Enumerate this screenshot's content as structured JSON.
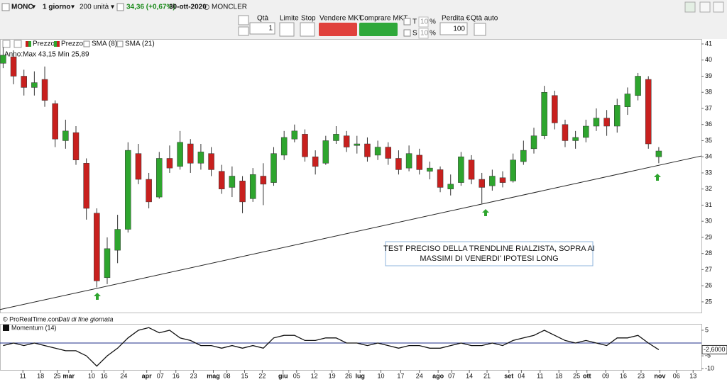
{
  "toolbar": {
    "symbol": "MONC",
    "period": "1 giorno",
    "units": "200 unità",
    "price": "34,36 (+0,67%)",
    "date": "30-ott-2020",
    "name": "MONCLER"
  },
  "order_bar": {
    "qty_label": "Qtà",
    "qty": "1",
    "limit": "Limite",
    "stop": "Stop",
    "sell": "Vendere MKT",
    "buy": "Comprare MKT",
    "t": "T",
    "s": "S",
    "t_pct": "10",
    "t_pct_sign": "%",
    "s_pct": "10",
    "s_pct_sign": "%",
    "loss_label": "Perdita €",
    "loss": "100",
    "auto_qty": "Qtà auto"
  },
  "legend": [
    "Prezzo",
    "Prezzo",
    "SMA (8)",
    "SMA (21)"
  ],
  "info": "Anno:Max 43,15 Min 25,89",
  "footer": [
    "© ProRealTime.com",
    "Dati di fine giornata"
  ],
  "chart_data": [
    {
      "type": "candlestick",
      "open": [
        39.8,
        40.2,
        39.0,
        38.3,
        38.8,
        37.3,
        35.0,
        35.5,
        33.6,
        30.5,
        26.5,
        28.2,
        29.5,
        34.2,
        32.6,
        31.5,
        33.9,
        33.4,
        34.8,
        33.6,
        34.2,
        33.1,
        32.1,
        32.5,
        31.4,
        32.8,
        32.4,
        34.1,
        35.1,
        35.4,
        34.0,
        33.6,
        35.0,
        35.3,
        34.7,
        34.8,
        34.1,
        34.6,
        33.9,
        33.3,
        34.1,
        33.1,
        33.2,
        32.0,
        32.4,
        33.8,
        32.6,
        32.2,
        32.7,
        32.5,
        33.7,
        34.5,
        35.3,
        37.8,
        36.0,
        35.0,
        35.2,
        35.9,
        36.4,
        35.9,
        37.1,
        37.8,
        38.8,
        34.0
      ],
      "high": [
        40.8,
        40.6,
        39.4,
        39.3,
        39.6,
        37.5,
        36.3,
        35.9,
        33.9,
        30.8,
        29.0,
        30.4,
        34.9,
        34.8,
        33.0,
        34.3,
        34.7,
        35.6,
        35.1,
        34.8,
        34.6,
        33.5,
        33.4,
        32.8,
        33.3,
        33.6,
        34.6,
        35.6,
        36.0,
        35.7,
        34.4,
        35.3,
        35.9,
        35.6,
        35.3,
        35.2,
        35.0,
        34.9,
        34.4,
        34.7,
        34.5,
        33.7,
        33.4,
        32.9,
        34.3,
        34.1,
        33.0,
        33.2,
        33.1,
        34.2,
        35.0,
        35.8,
        38.4,
        38.1,
        36.3,
        35.6,
        36.3,
        37.0,
        36.9,
        37.6,
        38.3,
        39.2,
        39.0,
        34.6
      ],
      "low": [
        39.5,
        38.5,
        37.8,
        37.8,
        37.1,
        34.6,
        34.5,
        33.5,
        30.1,
        25.9,
        26.1,
        27.4,
        29.3,
        32.3,
        30.8,
        31.4,
        33.0,
        33.2,
        33.0,
        33.2,
        32.8,
        31.7,
        31.5,
        30.5,
        31.2,
        31.0,
        32.2,
        33.8,
        34.9,
        33.7,
        32.9,
        33.5,
        34.8,
        34.3,
        34.2,
        33.7,
        33.8,
        33.5,
        32.9,
        33.1,
        32.9,
        32.6,
        31.8,
        31.6,
        32.2,
        32.3,
        31.1,
        31.9,
        32.1,
        32.4,
        33.5,
        34.2,
        35.1,
        35.7,
        34.6,
        34.5,
        34.9,
        35.6,
        35.3,
        35.5,
        36.6,
        37.5,
        34.5,
        33.6
      ],
      "close": [
        40.3,
        39.0,
        38.3,
        38.6,
        37.5,
        35.1,
        35.6,
        33.8,
        30.8,
        26.3,
        28.3,
        29.5,
        34.4,
        32.6,
        31.2,
        33.9,
        33.3,
        34.9,
        33.6,
        34.3,
        33.2,
        32.0,
        32.8,
        31.2,
        32.9,
        32.3,
        34.2,
        35.2,
        35.6,
        34.0,
        33.4,
        35.0,
        35.4,
        34.6,
        34.8,
        34.0,
        34.6,
        33.9,
        33.2,
        34.2,
        33.2,
        33.3,
        32.1,
        32.3,
        34.0,
        32.6,
        32.1,
        32.8,
        32.4,
        33.8,
        34.4,
        35.3,
        38.0,
        36.1,
        35.0,
        35.2,
        35.9,
        36.4,
        35.9,
        37.2,
        37.9,
        39.0,
        34.8,
        34.36
      ],
      "up_color": "#2ea52e",
      "down_color": "#c8201e",
      "xlim": [
        -0.3,
        67.1
      ],
      "ylim": [
        24.38,
        41.22
      ],
      "yticks": [
        25,
        26,
        27,
        28,
        29,
        30,
        31,
        32,
        33,
        34,
        35,
        36,
        37,
        38,
        39,
        40,
        41
      ],
      "trendline": {
        "x": [
          -0.3,
          67.1
        ],
        "y": [
          24.52,
          34.05
        ]
      },
      "annotation": [
        "TEST PRECISO DELLA TRENDLINE RIALZISTA, SOPRA AI",
        "MASSIMI DI VENERDI' IPOTESI LONG"
      ]
    },
    {
      "type": "line",
      "series": [
        {
          "name": "Momentum (14)",
          "color": "#111111",
          "values": [
            -1,
            0,
            -1,
            0,
            -1,
            -2,
            -3,
            -3,
            -5,
            -9,
            -5,
            -2,
            2,
            5,
            6,
            4,
            5,
            2,
            1,
            -1,
            -1,
            -2,
            -1,
            -2,
            -1,
            -2,
            2,
            3,
            3,
            1,
            1,
            2,
            2,
            0,
            0,
            -1,
            0,
            -1,
            -2,
            -1,
            -1,
            -2,
            -2,
            -1,
            0,
            -1,
            -1,
            0,
            -1,
            1,
            2,
            3,
            5,
            3,
            1,
            0,
            1,
            0,
            -1,
            2,
            2,
            3,
            0,
            -2.6
          ]
        }
      ],
      "last_value": {
        "value": -2.6,
        "label": "-2,6000"
      },
      "xlim": [
        -0.3,
        67.1
      ],
      "ylim": [
        -10.5,
        7.2
      ],
      "yticks": [
        5,
        -5,
        -10
      ],
      "xticks": [
        {
          "value": 1.9,
          "label": "11"
        },
        {
          "value": 3.6,
          "label": "18"
        },
        {
          "value": 5.2,
          "label": "25"
        },
        {
          "value": 6.3,
          "label": "mar"
        },
        {
          "value": 8.5,
          "label": "10"
        },
        {
          "value": 9.7,
          "label": "16"
        },
        {
          "value": 11.6,
          "label": "24"
        },
        {
          "value": 13.8,
          "label": "apr"
        },
        {
          "value": 15.1,
          "label": "07"
        },
        {
          "value": 16.6,
          "label": "16"
        },
        {
          "value": 18.3,
          "label": "23"
        },
        {
          "value": 20.2,
          "label": "mag"
        },
        {
          "value": 21.5,
          "label": "08"
        },
        {
          "value": 23.2,
          "label": "15"
        },
        {
          "value": 24.9,
          "label": "22"
        },
        {
          "value": 26.9,
          "label": "giu"
        },
        {
          "value": 28.2,
          "label": "05"
        },
        {
          "value": 29.9,
          "label": "12"
        },
        {
          "value": 31.6,
          "label": "19"
        },
        {
          "value": 33.2,
          "label": "26"
        },
        {
          "value": 34.3,
          "label": "lug"
        },
        {
          "value": 36.3,
          "label": "10"
        },
        {
          "value": 38.2,
          "label": "17"
        },
        {
          "value": 40.0,
          "label": "24"
        },
        {
          "value": 41.8,
          "label": "ago"
        },
        {
          "value": 43.1,
          "label": "07"
        },
        {
          "value": 44.8,
          "label": "14"
        },
        {
          "value": 46.5,
          "label": "21"
        },
        {
          "value": 48.6,
          "label": "set"
        },
        {
          "value": 49.8,
          "label": "04"
        },
        {
          "value": 51.6,
          "label": "11"
        },
        {
          "value": 53.4,
          "label": "18"
        },
        {
          "value": 55.1,
          "label": "25"
        },
        {
          "value": 56.1,
          "label": "ott"
        },
        {
          "value": 57.9,
          "label": "09"
        },
        {
          "value": 59.6,
          "label": "16"
        },
        {
          "value": 61.3,
          "label": "23"
        },
        {
          "value": 63.1,
          "label": "nov"
        },
        {
          "value": 64.7,
          "label": "06"
        },
        {
          "value": 66.3,
          "label": "13"
        }
      ]
    }
  ]
}
